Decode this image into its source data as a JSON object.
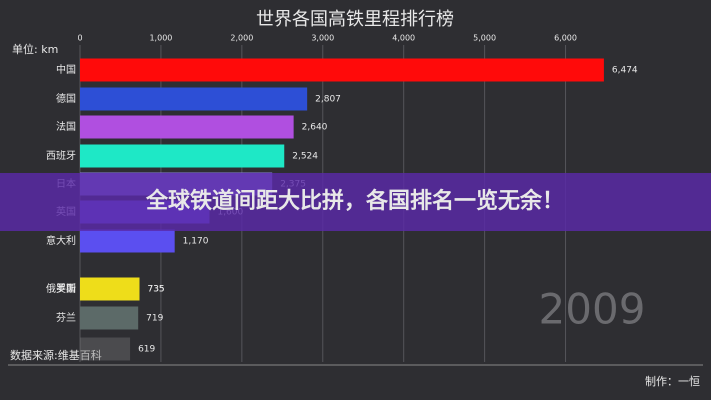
{
  "chart_data": {
    "type": "bar",
    "orientation": "horizontal",
    "title": "世界各国高铁里程排行榜",
    "unit_label": "单位: km",
    "categories": [
      "中国",
      "德国",
      "法国",
      "西班牙",
      "日本",
      "英国",
      "意大利",
      "俄罗斯",
      "美国",
      "芬兰",
      null
    ],
    "values": [
      6474,
      2807,
      2640,
      2524,
      2375,
      1600,
      1170,
      735,
      735,
      719,
      619
    ],
    "value_labels": [
      "6,474",
      "2,807",
      "2,640",
      "2,524",
      "2,375",
      "1,600",
      "1,170",
      "735",
      "735",
      "719",
      "619"
    ],
    "colors": [
      "#ff0a0a",
      "#2d4fd6",
      "#b04fe0",
      "#1ee8c6",
      "#8a7fe0",
      "#6a58ee",
      "#5b4ff0",
      "#eedd1a",
      "#eedd1a",
      "#5c6a68",
      "#777777"
    ],
    "xlim": [
      0,
      6500
    ],
    "xticks": [
      0,
      {
        "value": 1000,
        "label": "1,000"
      },
      {
        "value": 2000,
        "label": "2,000"
      },
      {
        "value": 3000,
        "label": "3,000"
      },
      {
        "value": 4000,
        "label": "4,000"
      },
      {
        "value": 5000,
        "label": "5,000"
      },
      {
        "value": 6000,
        "label": "6,000"
      }
    ],
    "grid": true,
    "year": "2009",
    "banner": "全球铁道间距大比拼，各国排名一览无余！",
    "source": "数据来源:维基百科",
    "credit": "制作：一恒"
  }
}
